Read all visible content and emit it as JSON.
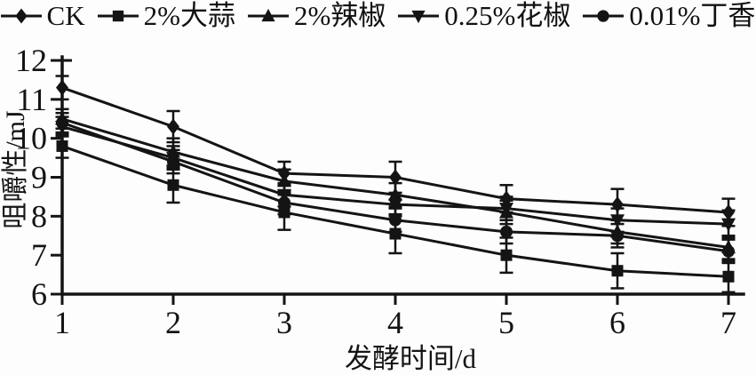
{
  "figure": {
    "background": "#fdfdfd",
    "ink_color": "#141414"
  },
  "chart_data": {
    "type": "line",
    "title": "",
    "xlabel": "发酵时间/d",
    "ylabel": "咀嚼性/mJ",
    "x": [
      1,
      2,
      3,
      4,
      5,
      6,
      7
    ],
    "xlim": [
      1,
      7
    ],
    "ylim": [
      6,
      12
    ],
    "xticks": [
      "1",
      "2",
      "3",
      "4",
      "5",
      "6",
      "7"
    ],
    "yticks": [
      "12",
      "11",
      "10",
      "9",
      "8",
      "7",
      "6"
    ],
    "ytick_values": [
      12,
      11,
      10,
      9,
      8,
      7,
      6
    ],
    "grid": false,
    "error_bars": true,
    "legend_position": "top",
    "series": [
      {
        "name": "CK",
        "marker": "diamond",
        "values": [
          11.3,
          10.3,
          9.1,
          9.0,
          8.45,
          8.3,
          8.1
        ],
        "errors": [
          0.3,
          0.4,
          0.3,
          0.4,
          0.35,
          0.4,
          0.35
        ]
      },
      {
        "name": "2%大蒜",
        "marker": "square",
        "values": [
          9.8,
          8.8,
          8.1,
          7.55,
          7.0,
          6.6,
          6.45
        ],
        "errors": [
          0.3,
          0.45,
          0.45,
          0.5,
          0.45,
          0.45,
          0.4
        ]
      },
      {
        "name": "2%辣椒",
        "marker": "triangle-up",
        "values": [
          10.5,
          9.65,
          8.9,
          8.55,
          8.1,
          7.6,
          7.2
        ],
        "errors": [
          0.25,
          0.35,
          0.3,
          0.3,
          0.3,
          0.3,
          0.3
        ]
      },
      {
        "name": "0.25%花椒",
        "marker": "triangle-down",
        "values": [
          10.3,
          9.5,
          8.55,
          8.3,
          8.2,
          7.9,
          7.8
        ],
        "errors": [
          0.25,
          0.3,
          0.3,
          0.3,
          0.3,
          0.3,
          0.35
        ]
      },
      {
        "name": "0.01%丁香",
        "marker": "circle",
        "values": [
          10.4,
          9.4,
          8.35,
          7.9,
          7.6,
          7.5,
          7.1
        ],
        "errors": [
          0.25,
          0.3,
          0.3,
          0.3,
          0.3,
          0.3,
          0.3
        ]
      }
    ]
  }
}
